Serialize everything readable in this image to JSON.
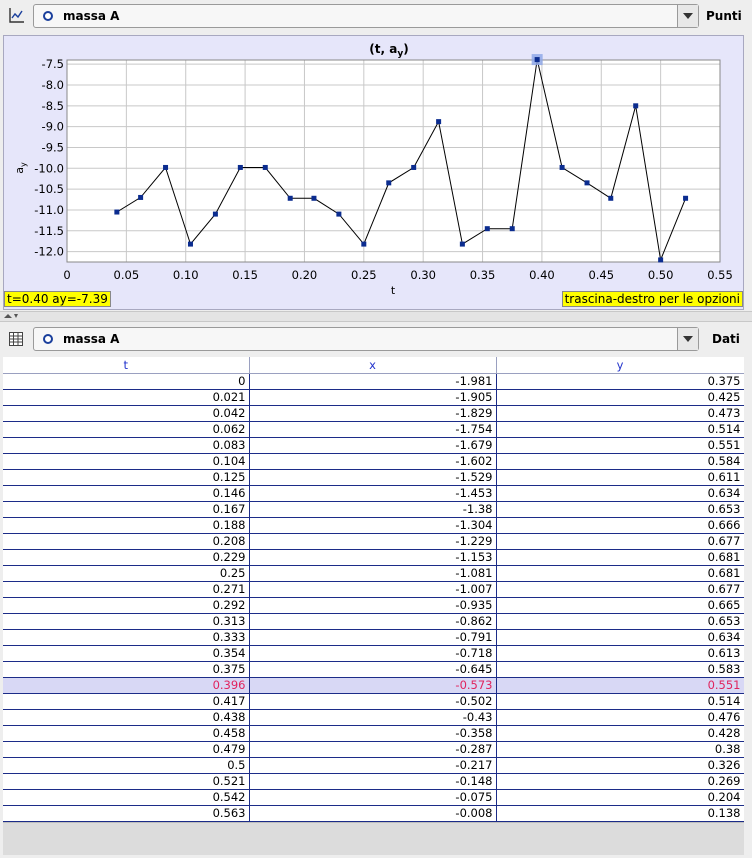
{
  "top_toolbar": {
    "object_label": "massa A",
    "mode_button": "Punti",
    "icon": "graph-axes-icon"
  },
  "status_left": "t=0.40  ay=-7.39",
  "status_right": "trascina-destro per le opzioni",
  "chart_data": {
    "type": "line",
    "title": "(t, a",
    "title_sub": "y",
    "title_end": ")",
    "xlabel": "t",
    "ylabel": "a",
    "ylabel_sub": "y",
    "xlim": [
      0,
      0.55
    ],
    "ylim": [
      -12.25,
      -7.4
    ],
    "xticks": [
      "0",
      "0.05",
      "0.10",
      "0.15",
      "0.20",
      "0.25",
      "0.30",
      "0.35",
      "0.40",
      "0.45",
      "0.50",
      "0.55"
    ],
    "yticks": [
      "-7.5",
      "-8.0",
      "-8.5",
      "-9.0",
      "-9.5",
      "-10.0",
      "-10.5",
      "-11.0",
      "-11.5",
      "-12.0"
    ],
    "grid": true,
    "series": [
      {
        "x": [
          0.042,
          0.062,
          0.083,
          0.104,
          0.125,
          0.146,
          0.167,
          0.188,
          0.208,
          0.229,
          0.25,
          0.271,
          0.292,
          0.313,
          0.333,
          0.354,
          0.375,
          0.396,
          0.417,
          0.438,
          0.458,
          0.479,
          0.5,
          0.521
        ],
        "y": [
          -11.05,
          -10.7,
          -9.98,
          -11.82,
          -11.1,
          -9.98,
          -9.98,
          -10.72,
          -10.72,
          -11.1,
          -11.82,
          -10.35,
          -9.98,
          -8.88,
          -11.82,
          -11.45,
          -11.45,
          -7.39,
          -9.98,
          -10.35,
          -10.72,
          -8.5,
          -12.2,
          -10.72
        ],
        "highlighted_index": 17
      }
    ]
  },
  "bottom_toolbar": {
    "object_label": "massa A",
    "mode_button": "Dati",
    "icon": "table-icon"
  },
  "table": {
    "headers": [
      "t",
      "x",
      "y"
    ],
    "selected_row": 19,
    "rows": [
      [
        "0",
        "-1.981",
        "0.375"
      ],
      [
        "0.021",
        "-1.905",
        "0.425"
      ],
      [
        "0.042",
        "-1.829",
        "0.473"
      ],
      [
        "0.062",
        "-1.754",
        "0.514"
      ],
      [
        "0.083",
        "-1.679",
        "0.551"
      ],
      [
        "0.104",
        "-1.602",
        "0.584"
      ],
      [
        "0.125",
        "-1.529",
        "0.611"
      ],
      [
        "0.146",
        "-1.453",
        "0.634"
      ],
      [
        "0.167",
        "-1.38",
        "0.653"
      ],
      [
        "0.188",
        "-1.304",
        "0.666"
      ],
      [
        "0.208",
        "-1.229",
        "0.677"
      ],
      [
        "0.229",
        "-1.153",
        "0.681"
      ],
      [
        "0.25",
        "-1.081",
        "0.681"
      ],
      [
        "0.271",
        "-1.007",
        "0.677"
      ],
      [
        "0.292",
        "-0.935",
        "0.665"
      ],
      [
        "0.313",
        "-0.862",
        "0.653"
      ],
      [
        "0.333",
        "-0.791",
        "0.634"
      ],
      [
        "0.354",
        "-0.718",
        "0.613"
      ],
      [
        "0.375",
        "-0.645",
        "0.583"
      ],
      [
        "0.396",
        "-0.573",
        "0.551"
      ],
      [
        "0.417",
        "-0.502",
        "0.514"
      ],
      [
        "0.438",
        "-0.43",
        "0.476"
      ],
      [
        "0.458",
        "-0.358",
        "0.428"
      ],
      [
        "0.479",
        "-0.287",
        "0.38"
      ],
      [
        "0.5",
        "-0.217",
        "0.326"
      ],
      [
        "0.521",
        "-0.148",
        "0.269"
      ],
      [
        "0.542",
        "-0.075",
        "0.204"
      ],
      [
        "0.563",
        "-0.008",
        "0.138"
      ]
    ]
  },
  "colors": {
    "series": "#000000",
    "marker": "#0b2c8f",
    "highlight": "#8fa8e8",
    "status_bg": "#ffff00",
    "selected_row_bg": "#d8d8f5",
    "selected_row_text": "#e0245e"
  }
}
